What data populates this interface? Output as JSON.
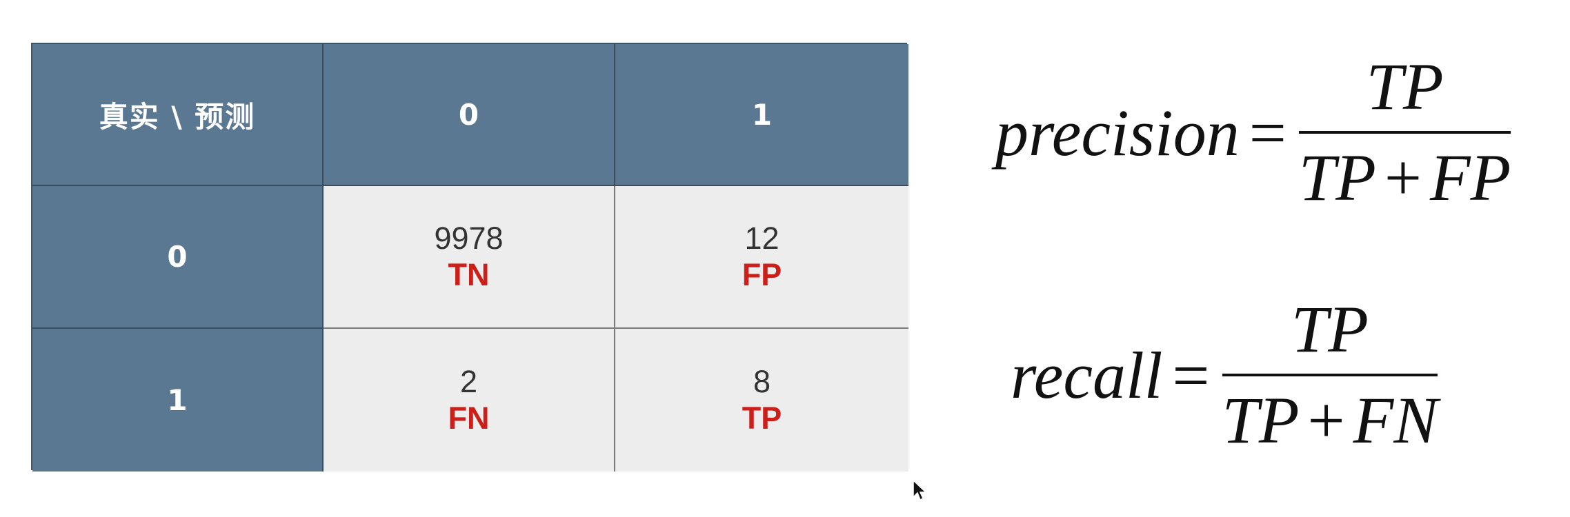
{
  "matrix": {
    "corner_label": "真实 \\ 预测",
    "col_headers": [
      "0",
      "1"
    ],
    "row_headers": [
      "0",
      "1"
    ],
    "cells": [
      [
        {
          "count": "9978",
          "label": "TN"
        },
        {
          "count": "12",
          "label": "FP"
        }
      ],
      [
        {
          "count": "2",
          "label": "FN"
        },
        {
          "count": "8",
          "label": "TP"
        }
      ]
    ],
    "colors": {
      "header_bg": "#5a7891",
      "cell_bg": "#ededed",
      "label_red": "#cc1f1a"
    }
  },
  "formulas": {
    "precision": {
      "lhs": "precision",
      "eq": "=",
      "num": "TP",
      "den_left": "TP",
      "den_op": "+",
      "den_right": "FP"
    },
    "recall": {
      "lhs": "recall",
      "eq": "=",
      "num": "TP",
      "den_left": "TP",
      "den_op": "+",
      "den_right": "FN"
    }
  },
  "icons": {
    "cursor": "mouse-pointer-icon"
  }
}
